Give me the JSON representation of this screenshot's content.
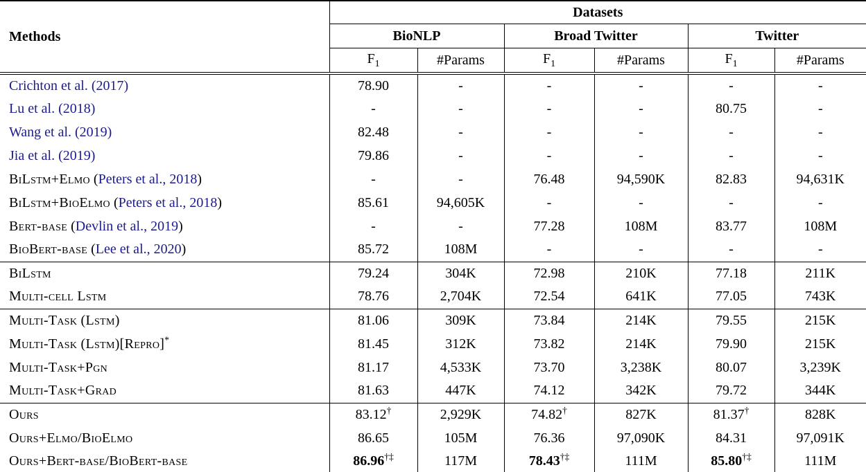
{
  "table": {
    "methods_header": "Methods",
    "datasets_header": "Datasets",
    "groups": [
      {
        "label": "BioNLP"
      },
      {
        "label": "Broad Twitter"
      },
      {
        "label": "Twitter"
      }
    ],
    "sub": {
      "f1_base": "F",
      "f1_subscript": "1",
      "params_label": "#Params"
    },
    "colors": {
      "citation_link": "#1b1b8c",
      "text": "#000000"
    },
    "sections": [
      {
        "rows": [
          {
            "method": {
              "kind": "link",
              "text": "Crichton et al. (2017)"
            },
            "cells": [
              "78.90",
              "-",
              "-",
              "-",
              "-",
              "-"
            ]
          },
          {
            "method": {
              "kind": "link",
              "text": "Lu et al. (2018)"
            },
            "cells": [
              "-",
              "-",
              "-",
              "-",
              "80.75",
              "-"
            ]
          },
          {
            "method": {
              "kind": "link",
              "text": "Wang et al. (2019)"
            },
            "cells": [
              "82.48",
              "-",
              "-",
              "-",
              "-",
              "-"
            ]
          },
          {
            "method": {
              "kind": "link",
              "text": "Jia et al. (2019)"
            },
            "cells": [
              "79.86",
              "-",
              "-",
              "-",
              "-",
              "-"
            ]
          },
          {
            "method": {
              "kind": "sc-cite",
              "text": "BiLstm+Elmo",
              "cite": "Peters et al., 2018"
            },
            "cells": [
              "-",
              "-",
              "76.48",
              "94,590K",
              "82.83",
              "94,631K"
            ]
          },
          {
            "method": {
              "kind": "sc-cite",
              "text": "BiLstm+BioElmo",
              "cite": "Peters et al., 2018"
            },
            "cells": [
              "85.61",
              "94,605K",
              "-",
              "-",
              "-",
              "-"
            ]
          },
          {
            "method": {
              "kind": "sc-cite",
              "text": "Bert-base",
              "cite": "Devlin et al., 2019"
            },
            "cells": [
              "-",
              "-",
              "77.28",
              "108M",
              "83.77",
              "108M"
            ]
          },
          {
            "method": {
              "kind": "sc-cite",
              "text": "BioBert-base",
              "cite": "Lee et al., 2020"
            },
            "cells": [
              "85.72",
              "108M",
              "-",
              "-",
              "-",
              "-"
            ]
          }
        ]
      },
      {
        "rows": [
          {
            "method": {
              "kind": "sc",
              "text": "BiLstm"
            },
            "cells": [
              "79.24",
              "304K",
              "72.98",
              "210K",
              "77.18",
              "211K"
            ]
          },
          {
            "method": {
              "kind": "sc",
              "text": "Multi-cell Lstm"
            },
            "cells": [
              "78.76",
              "2,704K",
              "72.54",
              "641K",
              "77.05",
              "743K"
            ]
          }
        ]
      },
      {
        "rows": [
          {
            "method": {
              "kind": "sc",
              "text": "Multi-Task (Lstm)"
            },
            "cells": [
              "81.06",
              "309K",
              "73.84",
              "214K",
              "79.55",
              "215K"
            ]
          },
          {
            "method": {
              "kind": "sc",
              "text": "Multi-Task (Lstm)[Repro]",
              "sup": "*"
            },
            "cells": [
              "81.45",
              "312K",
              "73.82",
              "214K",
              "79.90",
              "215K"
            ]
          },
          {
            "method": {
              "kind": "sc",
              "text": "Multi-Task+Pgn"
            },
            "cells": [
              "81.17",
              "4,533K",
              "73.70",
              "3,238K",
              "80.07",
              "3,239K"
            ]
          },
          {
            "method": {
              "kind": "sc",
              "text": "Multi-Task+Grad"
            },
            "cells": [
              "81.63",
              "447K",
              "74.12",
              "342K",
              "79.72",
              "344K"
            ]
          }
        ]
      },
      {
        "rows": [
          {
            "method": {
              "kind": "sc",
              "text": "Ours"
            },
            "cells": [
              {
                "v": "83.12",
                "sup": "†"
              },
              "2,929K",
              {
                "v": "74.82",
                "sup": "†"
              },
              "827K",
              {
                "v": "81.37",
                "sup": "†"
              },
              "828K"
            ]
          },
          {
            "method": {
              "kind": "sc",
              "text": "Ours+Elmo/BioElmo"
            },
            "cells": [
              "86.65",
              "105M",
              "76.36",
              "97,090K",
              "84.31",
              "97,091K"
            ]
          },
          {
            "method": {
              "kind": "sc",
              "text": "Ours+Bert-base/BioBert-base"
            },
            "cells": [
              {
                "v": "86.96",
                "sup": "†‡",
                "bold": true
              },
              "117M",
              {
                "v": "78.43",
                "sup": "†‡",
                "bold": true
              },
              "111M",
              {
                "v": "85.80",
                "sup": "†‡",
                "bold": true
              },
              "111M"
            ]
          }
        ]
      }
    ]
  }
}
